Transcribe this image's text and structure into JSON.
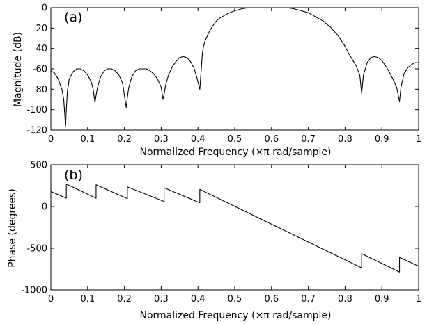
{
  "chart_data": [
    {
      "type": "line",
      "panel_label": "(a)",
      "xlabel": "Normalized Frequency  (×π rad/sample)",
      "ylabel": "Magnitude (dB)",
      "xlim": [
        0,
        1
      ],
      "ylim": [
        -120,
        0
      ],
      "xticks": [
        0,
        0.1,
        0.2,
        0.3,
        0.4,
        0.5,
        0.6,
        0.7,
        0.8,
        0.9,
        1
      ],
      "xtick_labels": [
        "0",
        "0.1",
        "0.2",
        "0.3",
        "0.4",
        "0.5",
        "0.6",
        "0.7",
        "0.8",
        "0.9",
        "1"
      ],
      "yticks": [
        0,
        -20,
        -40,
        -60,
        -80,
        -100,
        -120
      ],
      "ytick_labels": [
        "0",
        "-20",
        "-40",
        "-60",
        "-80",
        "-100",
        "-120"
      ],
      "grid": false,
      "series": [
        {
          "x": [
            0,
            0.01,
            0.02,
            0.03,
            0.035,
            0.04,
            0.042,
            0.045,
            0.05,
            0.06,
            0.07,
            0.08,
            0.09,
            0.1,
            0.11,
            0.115,
            0.12,
            0.123,
            0.127,
            0.135,
            0.145,
            0.155,
            0.165,
            0.175,
            0.185,
            0.195,
            0.205,
            0.208,
            0.212,
            0.22,
            0.23,
            0.24,
            0.25,
            0.26,
            0.27,
            0.28,
            0.29,
            0.3,
            0.305,
            0.308,
            0.312,
            0.32,
            0.33,
            0.34,
            0.35,
            0.36,
            0.37,
            0.38,
            0.39,
            0.398,
            0.405,
            0.408,
            0.412,
            0.415,
            0.42,
            0.43,
            0.44,
            0.45,
            0.46,
            0.48,
            0.5,
            0.52,
            0.54,
            0.56,
            0.58,
            0.6,
            0.62,
            0.64,
            0.66,
            0.68,
            0.7,
            0.72,
            0.74,
            0.76,
            0.78,
            0.8,
            0.81,
            0.82,
            0.83,
            0.84,
            0.845,
            0.85,
            0.86,
            0.87,
            0.88,
            0.89,
            0.9,
            0.91,
            0.92,
            0.93,
            0.94,
            0.948,
            0.952,
            0.96,
            0.97,
            0.98,
            0.99,
            1
          ],
          "y": [
            -62,
            -64,
            -70,
            -80,
            -90,
            -116,
            -100,
            -82,
            -70,
            -63,
            -60,
            -60,
            -62,
            -66,
            -73,
            -80,
            -93,
            -86,
            -78,
            -68,
            -62,
            -60,
            -60,
            -62,
            -66,
            -74,
            -98,
            -88,
            -78,
            -68,
            -62,
            -60,
            -60,
            -60,
            -62,
            -65,
            -70,
            -78,
            -90,
            -85,
            -76,
            -66,
            -58,
            -53,
            -49,
            -48,
            -49,
            -53,
            -60,
            -70,
            -80,
            -65,
            -45,
            -38,
            -32,
            -24,
            -18,
            -13,
            -10,
            -6,
            -3,
            -1,
            0,
            0,
            0,
            0,
            0,
            0,
            -1,
            -3,
            -5,
            -9,
            -13,
            -19,
            -27,
            -38,
            -45,
            -51,
            -57,
            -66,
            -84,
            -66,
            -54,
            -49,
            -48,
            -49,
            -52,
            -57,
            -63,
            -70,
            -78,
            -92,
            -78,
            -65,
            -59,
            -56,
            -54,
            -54
          ]
        }
      ]
    },
    {
      "type": "line",
      "panel_label": "(b)",
      "xlabel": "Normalized Frequency  (×π rad/sample)",
      "ylabel": "Phase (degrees)",
      "xlim": [
        0,
        1
      ],
      "ylim": [
        -1000,
        500
      ],
      "xticks": [
        0,
        0.1,
        0.2,
        0.3,
        0.4,
        0.5,
        0.6,
        0.7,
        0.8,
        0.9,
        1
      ],
      "xtick_labels": [
        "0",
        "0.1",
        "0.2",
        "0.3",
        "0.4",
        "0.5",
        "0.6",
        "0.7",
        "0.8",
        "0.9",
        "1"
      ],
      "yticks": [
        500,
        0,
        -500,
        -1000
      ],
      "ytick_labels": [
        "500",
        "0",
        "-500",
        "-1000"
      ],
      "grid": false,
      "series": [
        {
          "x": [
            0,
            0.042,
            0.042,
            0.123,
            0.123,
            0.208,
            0.208,
            0.308,
            0.308,
            0.405,
            0.405,
            0.845,
            0.845,
            0.948,
            0.948,
            1
          ],
          "y": [
            180,
            100,
            270,
            100,
            260,
            95,
            235,
            60,
            225,
            45,
            205,
            -735,
            -565,
            -785,
            -610,
            -715
          ]
        }
      ]
    }
  ]
}
